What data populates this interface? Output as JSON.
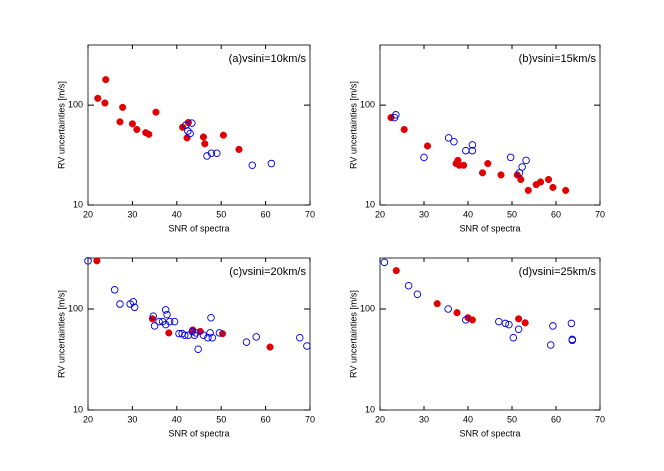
{
  "chart_data": [
    {
      "type": "scatter",
      "annotation": "(a)vsini=10km/s",
      "xlabel": "SNR of spectra",
      "ylabel": "RV uncertainties [m/s]",
      "xlim": [
        20,
        70
      ],
      "ylim": [
        10,
        400
      ],
      "xticks": [
        20,
        30,
        40,
        50,
        60,
        70
      ],
      "yticks": [
        10,
        100
      ],
      "log_y": true,
      "series": [
        {
          "color": "#e00000",
          "marker": "filled",
          "x": [
            22.2,
            23.8,
            24,
            27.2,
            27.8,
            30,
            31,
            33,
            33.7,
            35.3,
            41.3,
            42.3,
            42.6,
            46,
            46.3,
            50.5,
            54
          ],
          "values": [
            117,
            105,
            180,
            68,
            95,
            65,
            57,
            53,
            51,
            85,
            60,
            47,
            67,
            48,
            41,
            50,
            36
          ]
        },
        {
          "color": "#0000dd",
          "marker": "open",
          "x": [
            42,
            42.5,
            43,
            43.4,
            46.8,
            47.8,
            49,
            57,
            61.3
          ],
          "values": [
            63,
            55,
            52,
            66,
            31,
            33,
            33,
            25,
            26
          ]
        }
      ]
    },
    {
      "type": "scatter",
      "annotation": "(b)vsini=15km/s",
      "xlabel": "SNR of spectra",
      "ylabel": "RV uncertainties [m/s]",
      "xlim": [
        20,
        70
      ],
      "ylim": [
        10,
        400
      ],
      "xticks": [
        20,
        30,
        40,
        50,
        60,
        70
      ],
      "yticks": [
        10,
        100
      ],
      "log_y": true,
      "series": [
        {
          "color": "#e00000",
          "marker": "filled",
          "x": [
            22.5,
            25.5,
            30.8,
            37.3,
            37.7,
            38,
            39,
            43.3,
            44.5,
            47.5,
            51.2,
            52,
            53.7,
            55.5,
            56.5,
            58.3,
            59.3,
            62.2
          ],
          "values": [
            75,
            57,
            39,
            26,
            28,
            25,
            25,
            21,
            26,
            20,
            20,
            18,
            14,
            16,
            17,
            18,
            15,
            14
          ]
        },
        {
          "color": "#0000dd",
          "marker": "open",
          "x": [
            23.3,
            23.6,
            30,
            35.6,
            36.8,
            39.5,
            41,
            41,
            49.7,
            51.7,
            52.3,
            53.2
          ],
          "values": [
            75,
            80,
            30,
            47,
            43,
            35,
            40,
            35,
            30,
            21,
            24,
            28
          ]
        }
      ]
    },
    {
      "type": "scatter",
      "annotation": "(c)vsini=20km/s",
      "xlabel": "SNR of spectra",
      "ylabel": "RV uncertainties [m/s]",
      "xlim": [
        20,
        70
      ],
      "ylim": [
        10,
        320
      ],
      "xticks": [
        20,
        30,
        40,
        50,
        60,
        70
      ],
      "yticks": [
        10,
        100
      ],
      "log_y": true,
      "series": [
        {
          "color": "#e00000",
          "marker": "filled",
          "x": [
            22,
            34.5,
            38.2,
            43.6,
            45.3,
            50.3,
            61
          ],
          "values": [
            300,
            80,
            58,
            62,
            60,
            57,
            42
          ]
        },
        {
          "color": "#0000dd",
          "marker": "open",
          "x": [
            20,
            26,
            27.2,
            29.5,
            30.2,
            30.5,
            34.7,
            35,
            36,
            36.8,
            37.5,
            37.5,
            37.8,
            38.4,
            39.5,
            40.5,
            41.2,
            41.8,
            42.6,
            43.5,
            44,
            44.3,
            44.8,
            46,
            47,
            47.5,
            47.7,
            48,
            49.6,
            55.7,
            57.9,
            67.7,
            69.3
          ],
          "values": [
            300,
            155,
            112,
            112,
            118,
            104,
            85,
            68,
            75,
            75,
            70,
            98,
            88,
            75,
            75,
            57,
            57,
            55,
            55,
            60,
            55,
            58,
            40,
            55,
            52,
            58,
            82,
            52,
            58,
            47,
            53,
            52,
            43
          ]
        }
      ]
    },
    {
      "type": "scatter",
      "annotation": "(d)vsini=25km/s",
      "xlabel": "SNR of spectra",
      "ylabel": "RV uncertainties [m/s]",
      "xlim": [
        20,
        70
      ],
      "ylim": [
        10,
        320
      ],
      "xticks": [
        20,
        30,
        40,
        50,
        60,
        70
      ],
      "yticks": [
        10,
        100
      ],
      "log_y": true,
      "series": [
        {
          "color": "#e00000",
          "marker": "filled",
          "x": [
            23.7,
            33,
            37.5,
            40,
            41,
            51.5,
            53
          ],
          "values": [
            240,
            113,
            92,
            82,
            78,
            80,
            73
          ]
        },
        {
          "color": "#0000dd",
          "marker": "open",
          "x": [
            21,
            26.5,
            28.5,
            35.5,
            39.5,
            47,
            48.5,
            49.3,
            50.3,
            51.5,
            58.8,
            59.3,
            63.5,
            63.7,
            63.7
          ],
          "values": [
            290,
            170,
            140,
            100,
            78,
            75,
            72,
            70,
            52,
            63,
            44,
            68,
            72,
            50,
            49
          ]
        }
      ]
    }
  ]
}
